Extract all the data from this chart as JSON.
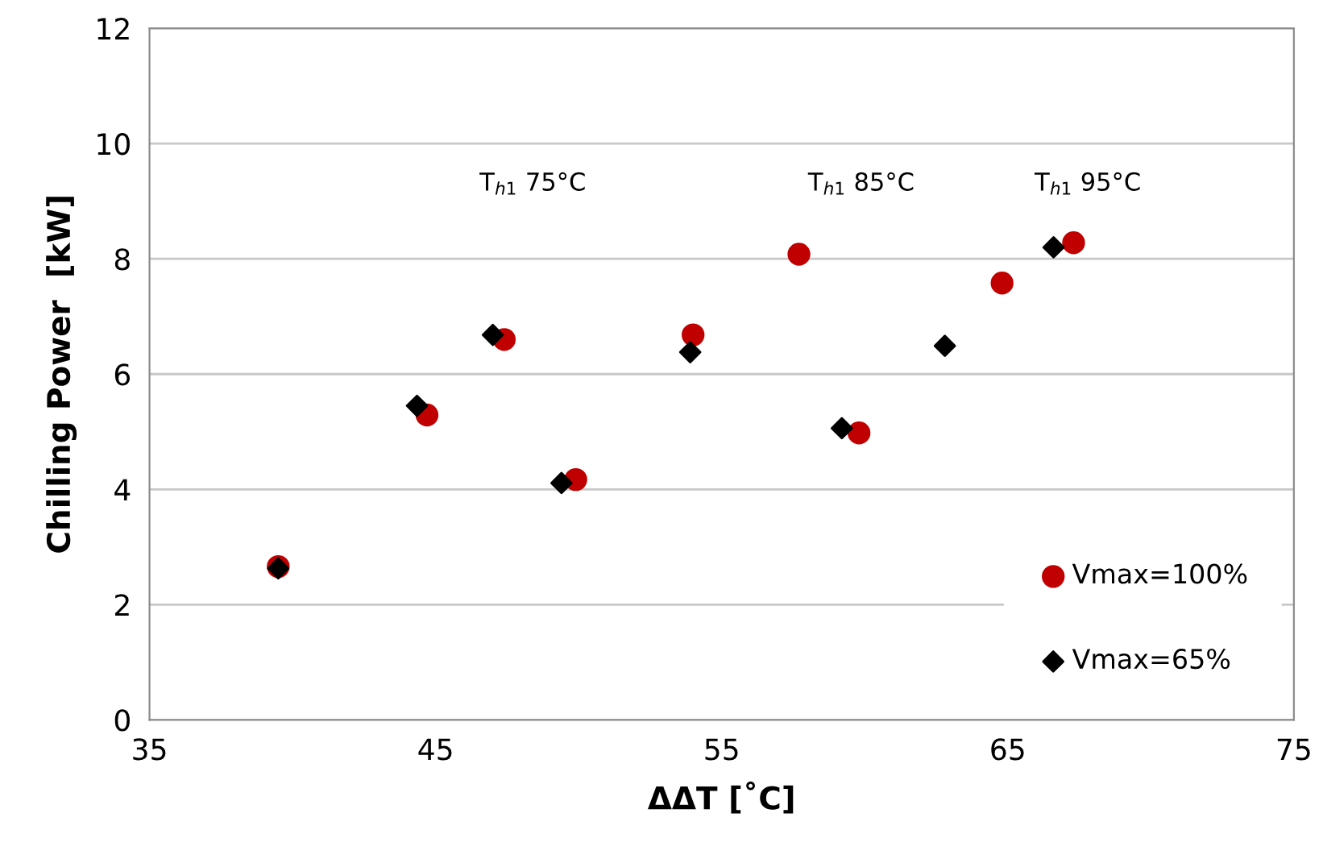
{
  "chart_data": {
    "type": "scatter",
    "xlabel": "ΔΔT [˚C]",
    "ylabel": "Chilling Power  [kW]",
    "xlim": [
      35,
      75
    ],
    "xticks": [
      35,
      45,
      55,
      65,
      75
    ],
    "ylim": [
      0,
      12
    ],
    "yticks": [
      0,
      2,
      4,
      6,
      8,
      10,
      12
    ],
    "grid": "y",
    "legend": "bottom right",
    "series": [
      {
        "name": "Vmax=100%",
        "color": "#c00000",
        "marker": "circle",
        "x": [
          39.5,
          44.7,
          47.4,
          49.9,
          54.0,
          57.7,
          59.8,
          64.8,
          67.3
        ],
        "values": [
          2.66,
          5.29,
          6.6,
          4.17,
          6.68,
          8.08,
          4.98,
          7.58,
          8.28
        ]
      },
      {
        "name": "Vmax=65%",
        "color": "#000000",
        "marker": "diamond",
        "x": [
          39.5,
          44.35,
          47.0,
          49.4,
          53.9,
          59.2,
          62.8,
          66.6
        ],
        "values": [
          2.63,
          5.45,
          6.68,
          4.11,
          6.38,
          5.06,
          6.49,
          8.2
        ]
      }
    ],
    "annotations": [
      "T$_{h1}$ 75°C",
      "T$_{h1}$ 85°C",
      "T$_{h1}$ 95°C"
    ]
  }
}
